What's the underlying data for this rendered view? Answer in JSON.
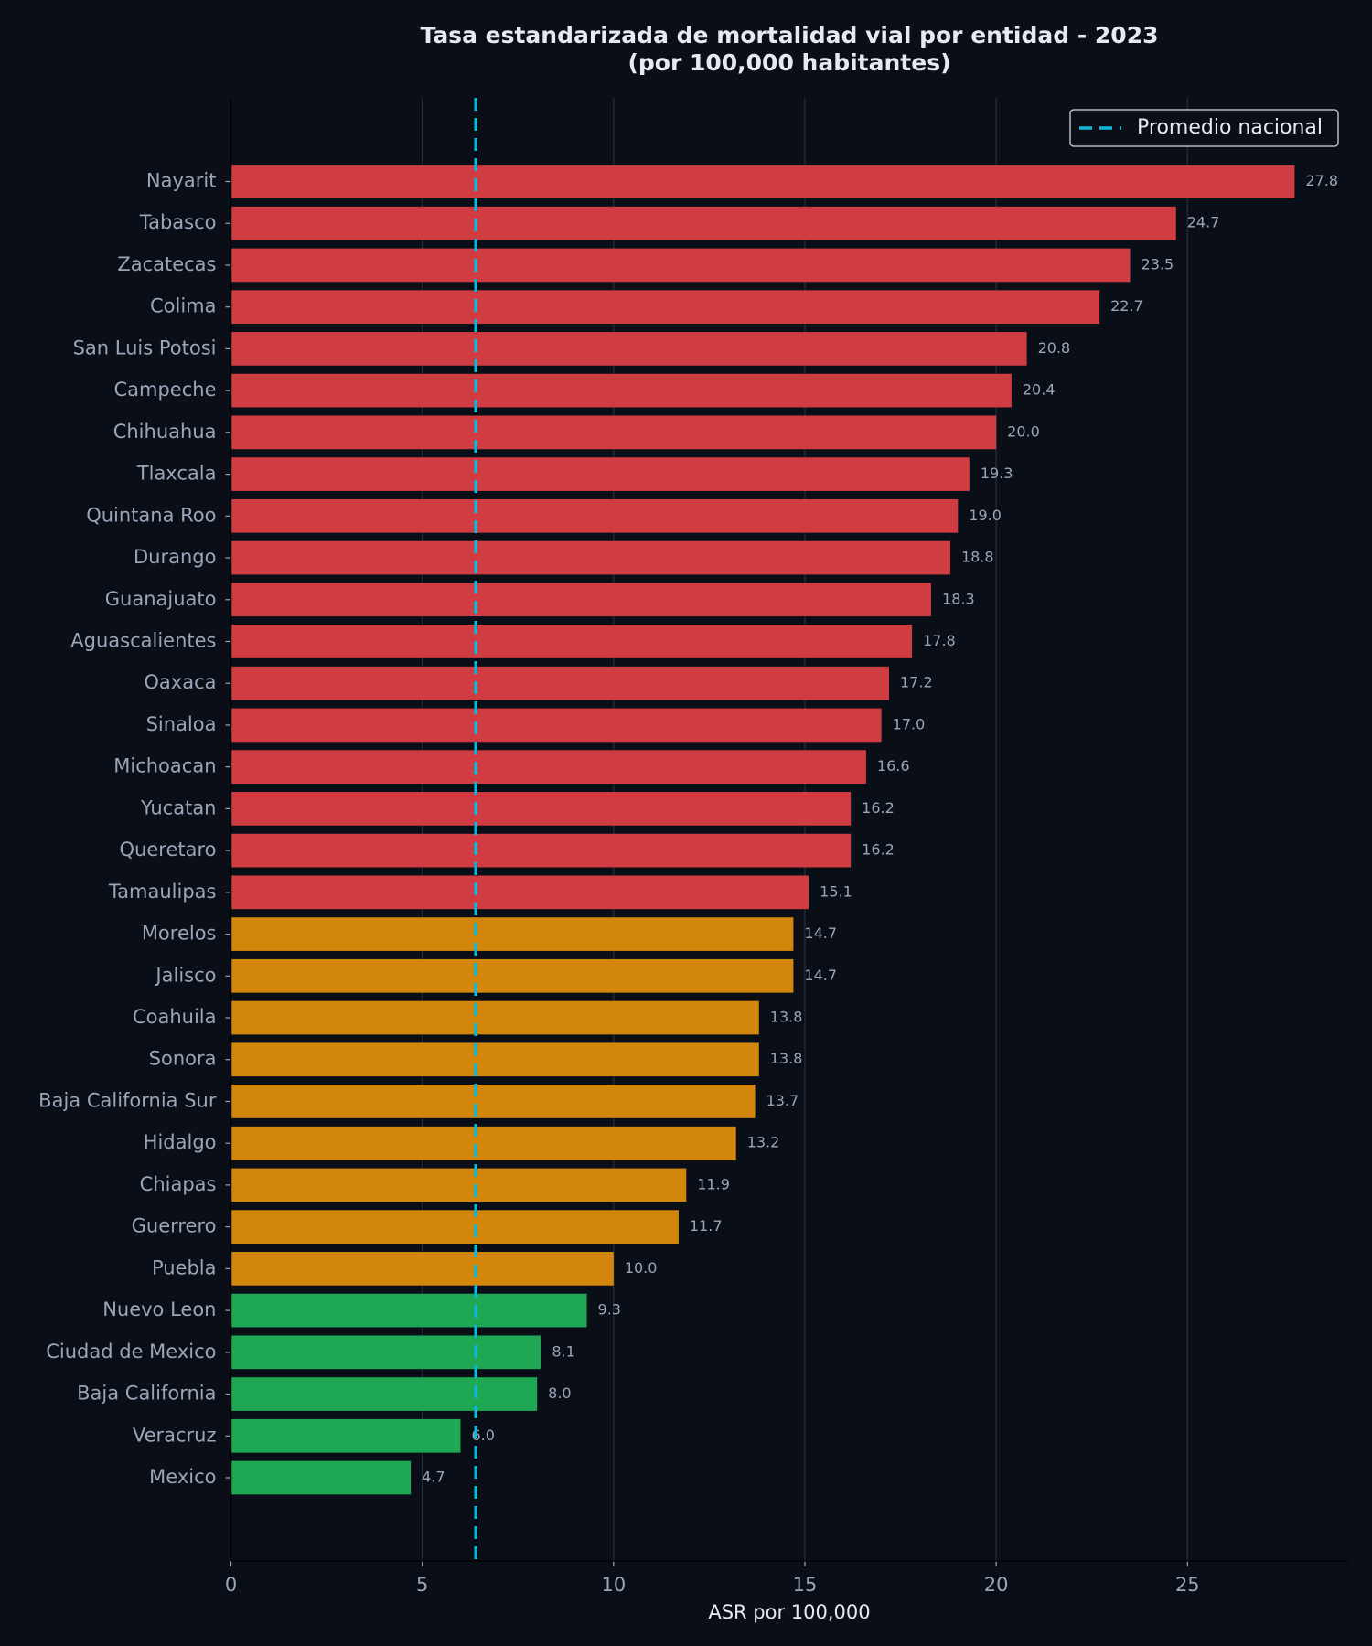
{
  "chart_data": {
    "type": "bar",
    "orientation": "horizontal",
    "title": "Tasa estandarizada de mortalidad vial por entidad - 2023",
    "subtitle": "(por 100,000 habitantes)",
    "xlabel": "ASR por 100,000",
    "ylabel": "",
    "xlim": [
      0,
      29.2
    ],
    "xticks": [
      0,
      5,
      10,
      15,
      20,
      25
    ],
    "grid": "vertical",
    "legend": {
      "placement": "top-right",
      "entries": [
        "Promedio nacional"
      ]
    },
    "reference_line": {
      "name": "Promedio nacional",
      "value": 6.4,
      "color": "#12b5d4",
      "style": "dashed"
    },
    "colors": {
      "high": "#cf3d42",
      "medium": "#d2860c",
      "low": "#1fa853",
      "background": "#0a0e17"
    },
    "categories": [
      "Nayarit",
      "Tabasco",
      "Zacatecas",
      "Colima",
      "San Luis Potosi",
      "Campeche",
      "Chihuahua",
      "Tlaxcala",
      "Quintana Roo",
      "Durango",
      "Guanajuato",
      "Aguascalientes",
      "Oaxaca",
      "Sinaloa",
      "Michoacan",
      "Yucatan",
      "Queretaro",
      "Tamaulipas",
      "Morelos",
      "Jalisco",
      "Coahuila",
      "Sonora",
      "Baja California Sur",
      "Hidalgo",
      "Chiapas",
      "Guerrero",
      "Puebla",
      "Nuevo Leon",
      "Ciudad de Mexico",
      "Baja California",
      "Veracruz",
      "Mexico"
    ],
    "values": [
      27.8,
      24.7,
      23.5,
      22.7,
      20.8,
      20.4,
      20.0,
      19.3,
      19.0,
      18.8,
      18.3,
      17.8,
      17.2,
      17.0,
      16.6,
      16.2,
      16.2,
      15.1,
      14.7,
      14.7,
      13.8,
      13.8,
      13.7,
      13.2,
      11.9,
      11.7,
      10.0,
      9.3,
      8.1,
      8.0,
      6.0,
      4.7
    ],
    "value_labels": [
      "27.8",
      "24.7",
      "23.5",
      "22.7",
      "20.8",
      "20.4",
      "20.0",
      "19.3",
      "19.0",
      "18.8",
      "18.3",
      "17.8",
      "17.2",
      "17.0",
      "16.6",
      "16.2",
      "16.2",
      "15.1",
      "14.7",
      "14.7",
      "13.8",
      "13.8",
      "13.7",
      "13.2",
      "11.9",
      "11.7",
      "10.0",
      "9.3",
      "8.1",
      "8.0",
      "6.0",
      "4.7"
    ],
    "groups": [
      "high",
      "high",
      "high",
      "high",
      "high",
      "high",
      "high",
      "high",
      "high",
      "high",
      "high",
      "high",
      "high",
      "high",
      "high",
      "high",
      "high",
      "high",
      "medium",
      "medium",
      "medium",
      "medium",
      "medium",
      "medium",
      "medium",
      "medium",
      "medium",
      "low",
      "low",
      "low",
      "low",
      "low"
    ]
  }
}
